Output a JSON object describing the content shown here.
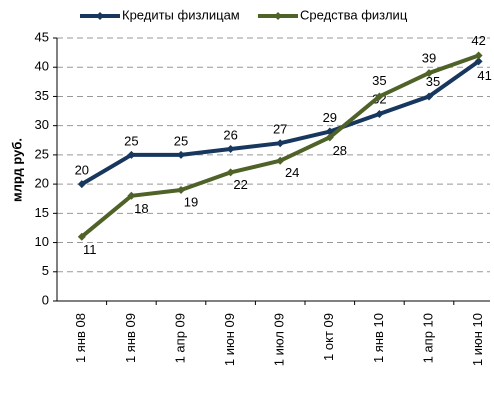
{
  "chart_data": {
    "type": "line",
    "y_label": "млрд руб.",
    "categories": [
      "1 янв 08",
      "1 янв 09",
      "1 апр 09",
      "1 июн 09",
      "1 июл 09",
      "1 окт 09",
      "1 янв 10",
      "1 апр 10",
      "1 июн 10"
    ],
    "series": [
      {
        "name": "Кредиты физлицам",
        "color": "#17375e",
        "values": [
          20,
          25,
          25,
          26,
          27,
          29,
          32,
          35,
          41
        ]
      },
      {
        "name": "Средства физлиц",
        "color": "#4f6228",
        "values": [
          11,
          18,
          19,
          22,
          24,
          28,
          35,
          39,
          42
        ]
      }
    ],
    "ylim": [
      0,
      45
    ],
    "yticks": [
      0,
      5,
      10,
      15,
      20,
      25,
      30,
      35,
      40,
      45
    ],
    "grid": true,
    "legend": "top"
  }
}
